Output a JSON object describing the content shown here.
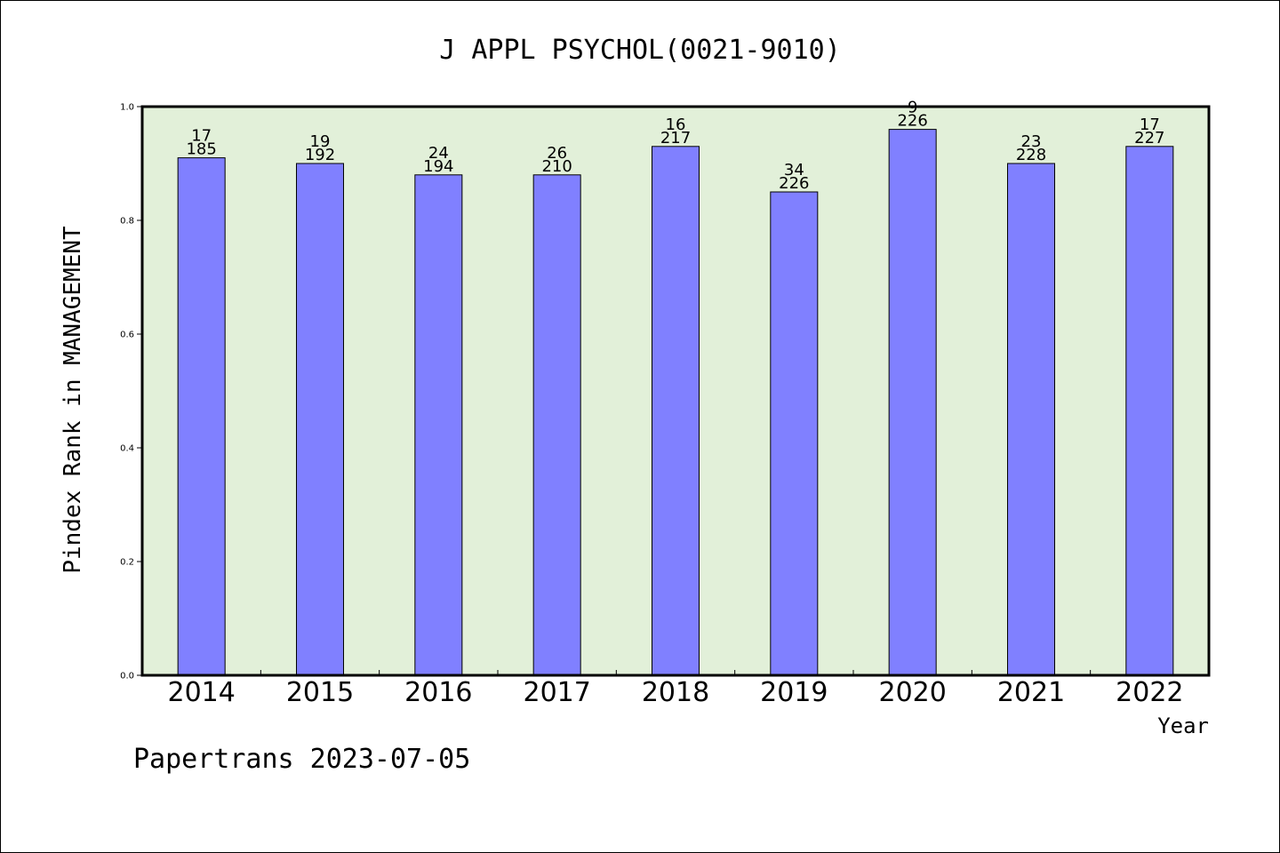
{
  "chart_data": {
    "type": "bar",
    "title": "J APPL PSYCHOL(0021-9010)",
    "xlabel": "Year",
    "ylabel": "Pindex Rank in MANAGEMENT",
    "ylim": [
      0,
      1
    ],
    "yticks": [
      "0.0",
      "0.2",
      "0.4",
      "0.6",
      "0.8",
      "1.0"
    ],
    "categories": [
      "2014",
      "2015",
      "2016",
      "2017",
      "2018",
      "2019",
      "2020",
      "2021",
      "2022"
    ],
    "values": [
      0.91,
      0.9,
      0.88,
      0.88,
      0.93,
      0.85,
      0.96,
      0.9,
      0.93
    ],
    "rank_labels": [
      "17",
      "19",
      "24",
      "26",
      "16",
      "34",
      "9",
      "23",
      "17"
    ],
    "total_labels": [
      "185",
      "192",
      "194",
      "210",
      "217",
      "226",
      "226",
      "228",
      "227"
    ],
    "grid": false,
    "colors": {
      "plot_background": "#e2f0d9",
      "bar_fill": "#8080ff",
      "bar_stroke": "#000000",
      "axis": "#000000"
    }
  },
  "footer": {
    "text": "Papertrans 2023-07-05"
  }
}
